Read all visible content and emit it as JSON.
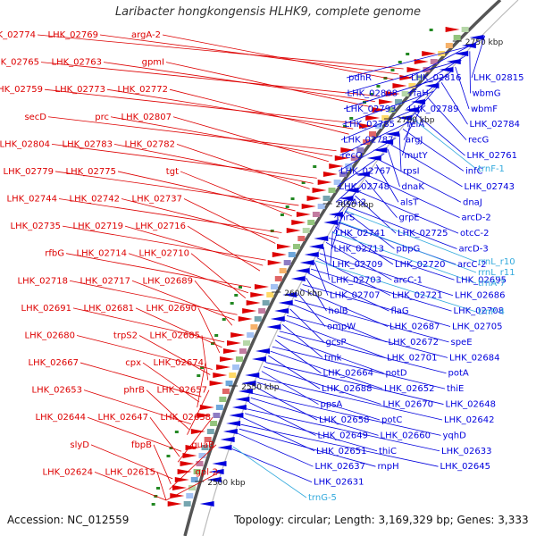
{
  "title": "Laribacter hongkongensis HLHK9, complete genome",
  "footer": {
    "accession": "Accession: NC_012559",
    "info": "Topology: circular; Length: 3,169,329 bp; Genes: 3,333"
  },
  "colors": {
    "forward_strand": "#dd0000",
    "reverse_strand": "#0000dd",
    "rna_genes": "#33aadd",
    "backbone": "#999999",
    "tick": "#228822"
  },
  "scale_ticks": [
    "2500 kbp",
    "2550 kbp",
    "2600 kbp",
    "2650 kbp",
    "2700 kbp",
    "2750 kbp"
  ],
  "labels_left": [
    "LHK_02774",
    "LHK_02769",
    "argA-2",
    "LHK_02765",
    "LHK_02763",
    "gpmI",
    "LHK_02759",
    "LHK_02773",
    "LHK_02772",
    "secD",
    "prc",
    "LHK_02807",
    "LHK_02804",
    "LHK_02783",
    "LHK_02782",
    "LHK_02779",
    "LHK_02775",
    "tgt",
    "LHK_02744",
    "LHK_02742",
    "LHK_02737",
    "LHK_02735",
    "LHK_02719",
    "LHK_02716",
    "rfbG",
    "LHK_02714",
    "LHK_02710",
    "LHK_02718",
    "LHK_02717",
    "LHK_02689",
    "LHK_02691",
    "LHK_02681",
    "LHK_02690",
    "LHK_02680",
    "trpS2",
    "LHK_02685",
    "LHK_02667",
    "cpx",
    "LHK_02674",
    "LHK_02653",
    "phrB",
    "LHK_02657",
    "LHK_02644",
    "LHK_02647",
    "LHK_02638",
    "slyD",
    "fbpB",
    "guaB",
    "LHK_02624",
    "LHK_02615",
    "gpl-2"
  ],
  "labels_right": [
    "pdhR",
    "LHK_02816",
    "LHK_02815",
    "LHK_02808",
    "rfaH",
    "wbmG",
    "LHK_02793",
    "LHK_02789",
    "wbmF",
    "LHK_02785",
    "relA",
    "LHK_02784",
    "LHK_02787",
    "argJ",
    "recG",
    "recO",
    "mutY",
    "LHK_02761",
    "LHK_02767",
    "rpsI",
    "infC",
    "LHK_02748",
    "dnaK",
    "LHK_02743",
    "arcA-2",
    "alsT",
    "dnaJ",
    "thrS",
    "grpE",
    "arcD-2",
    "LHK_02741",
    "LHK_02725",
    "otcC-2",
    "LHK_02713",
    "pbpG",
    "arcD-3",
    "LHK_02709",
    "LHK_02720",
    "arcC-2",
    "LHK_02703",
    "arcC-1",
    "LHK_02695",
    "LHK_02707",
    "LHK_02721",
    "LHK_02686",
    "holB",
    "flaG",
    "LHK_02708",
    "ompW",
    "LHK_02687",
    "LHK_02705",
    "gcsP",
    "LHK_02672",
    "speE",
    "tmk",
    "LHK_02701",
    "LHK_02684",
    "LHK_02664",
    "potD",
    "potA",
    "LHK_02688",
    "LHK_02652",
    "thiE",
    "ppsA",
    "LHK_02670",
    "LHK_02648",
    "LHK_02658",
    "potC",
    "LHK_02642",
    "LHK_02649",
    "LHK_02660",
    "yqhD",
    "LHK_02651",
    "thiC",
    "LHK_02633",
    "LHK_02637",
    "rnpH",
    "LHK_02645",
    "LHK_02631"
  ],
  "labels_rna": [
    "trnF-1",
    "rrnL_r10",
    "rrnL_r11",
    "trnA-7",
    "trnP-4",
    "trnG-5"
  ]
}
